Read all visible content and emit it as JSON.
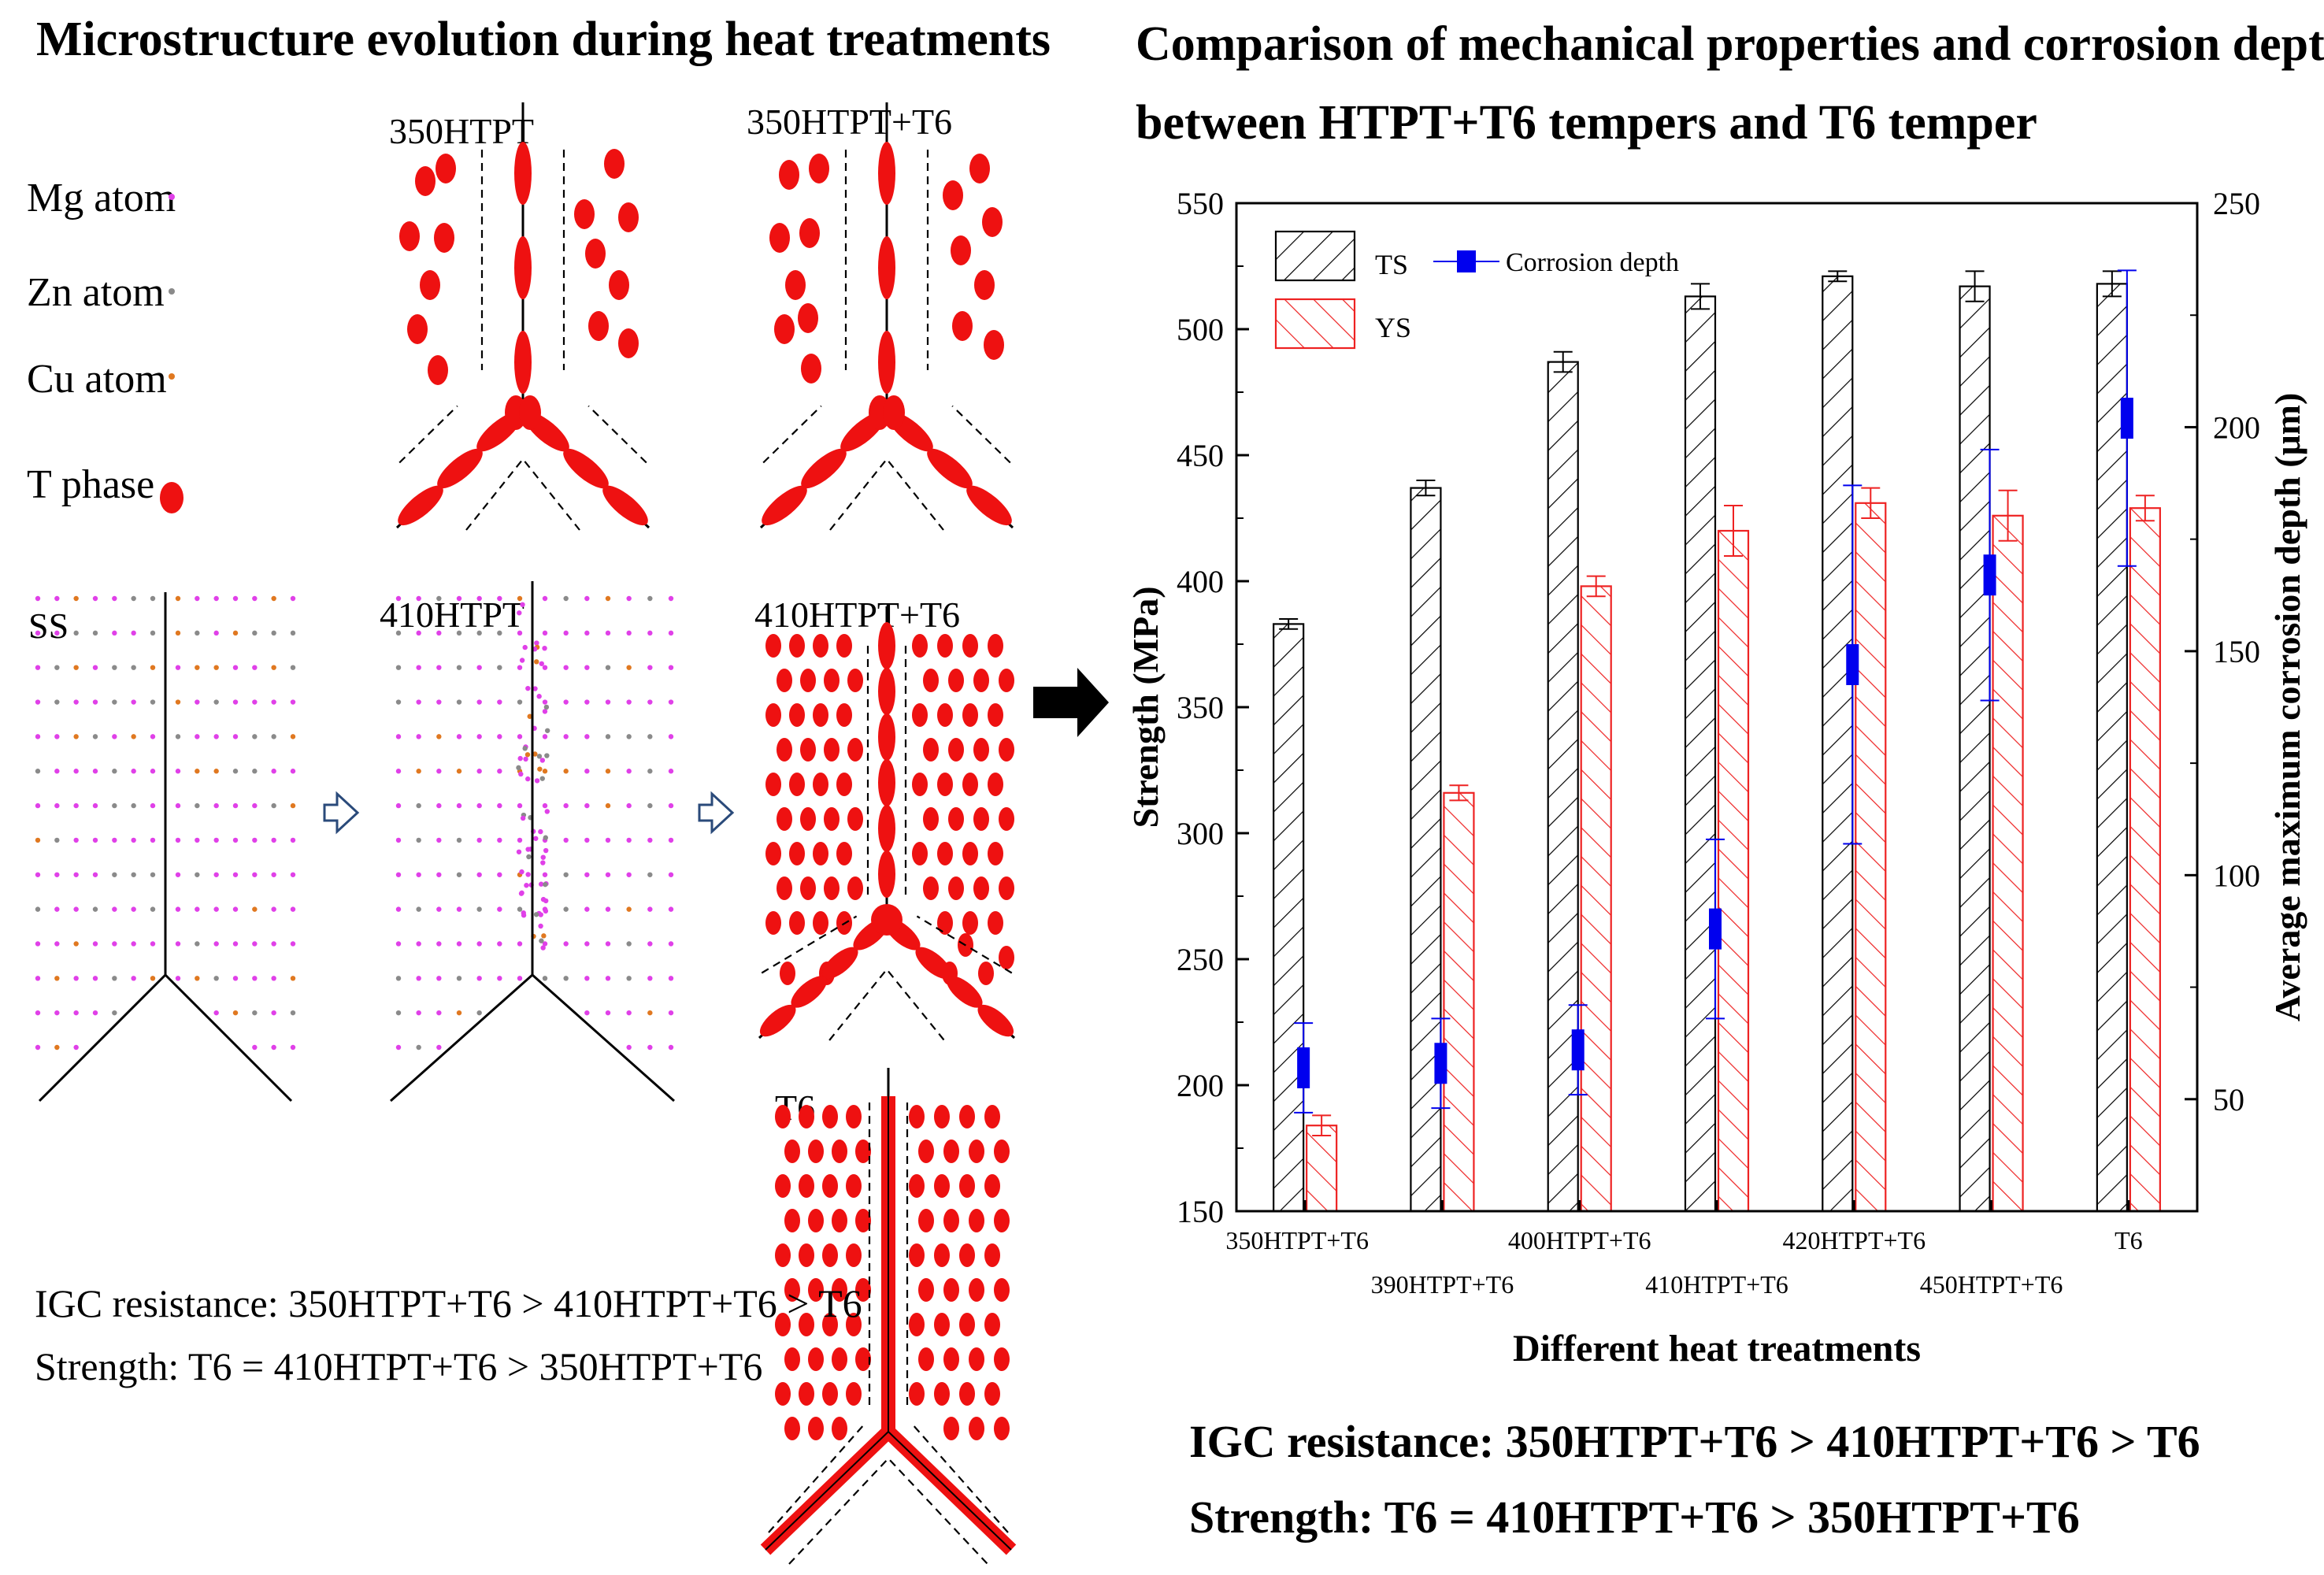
{
  "left_panel": {
    "title": "Microstructure evolution during heat treatments",
    "legend": [
      {
        "label": "Mg atom",
        "color": "#e040e8"
      },
      {
        "label": "Zn atom",
        "color": "#8a8a8a"
      },
      {
        "label": "Cu atom",
        "color": "#e07820"
      },
      {
        "label": "T phase",
        "color": "#ee1111"
      }
    ],
    "states": {
      "ss": "SS",
      "p350": "350HTPT",
      "p350t6": "350HTPT+T6",
      "p410": "410HTPT",
      "p410t6": "410HTPT+T6",
      "t6": "T6"
    },
    "summary": {
      "igc": "IGC resistance: 350HTPT+T6 > 410HTPT+T6 > T6",
      "strength": "Strength: T6 = 410HTPT+T6 > 350HTPT+T6"
    }
  },
  "right_panel": {
    "title_line1": "Comparison of mechanical properties and corrosion depth",
    "title_line2": "between HTPT+T6 tempers and T6 temper",
    "summary": {
      "igc": "IGC resistance: 350HTPT+T6 > 410HTPT+T6 > T6",
      "strength": "Strength: T6 = 410HTPT+T6 > 350HTPT+T6"
    }
  },
  "colors": {
    "ts": "#000000",
    "ys": "#ee2222",
    "corrosion": "#0000ee",
    "highlight": "#ee2222"
  },
  "chart_data": {
    "type": "bar",
    "xlabel": "Different heat treatments",
    "ylabel": "Strength (MPa)",
    "ylabel_right": "Average maximum corrosion depth (μm)",
    "ylim": [
      150,
      550
    ],
    "ylim_right": [
      25,
      250
    ],
    "yticks": [
      "150",
      "200",
      "250",
      "300",
      "350",
      "400",
      "450",
      "500",
      "550"
    ],
    "yticks_right": [
      "50",
      "100",
      "150",
      "200",
      "250"
    ],
    "categories": [
      "350HTPT+T6",
      "390HTPT+T6",
      "400HTPT+T6",
      "410HTPT+T6",
      "420HTPT+T6",
      "450HTPT+T6",
      "T6"
    ],
    "highlighted": [
      "350HTPT+T6",
      "410HTPT+T6",
      "T6"
    ],
    "legend": {
      "ts": "TS",
      "ys": "YS",
      "corrosion": "Corrosion depth"
    },
    "series": [
      {
        "name": "TS",
        "values": [
          383,
          437,
          487,
          513,
          521,
          517,
          518
        ],
        "errors": [
          2,
          3,
          4,
          5,
          2,
          6,
          5
        ]
      },
      {
        "name": "YS",
        "values": [
          184,
          316,
          398,
          420,
          431,
          426,
          429
        ],
        "errors": [
          4,
          3,
          4,
          10,
          6,
          10,
          5
        ]
      },
      {
        "name": "Corrosion depth",
        "values": [
          57,
          58,
          61,
          88,
          147,
          167,
          202
        ],
        "errors": [
          10,
          10,
          10,
          20,
          40,
          28,
          33
        ]
      }
    ]
  }
}
